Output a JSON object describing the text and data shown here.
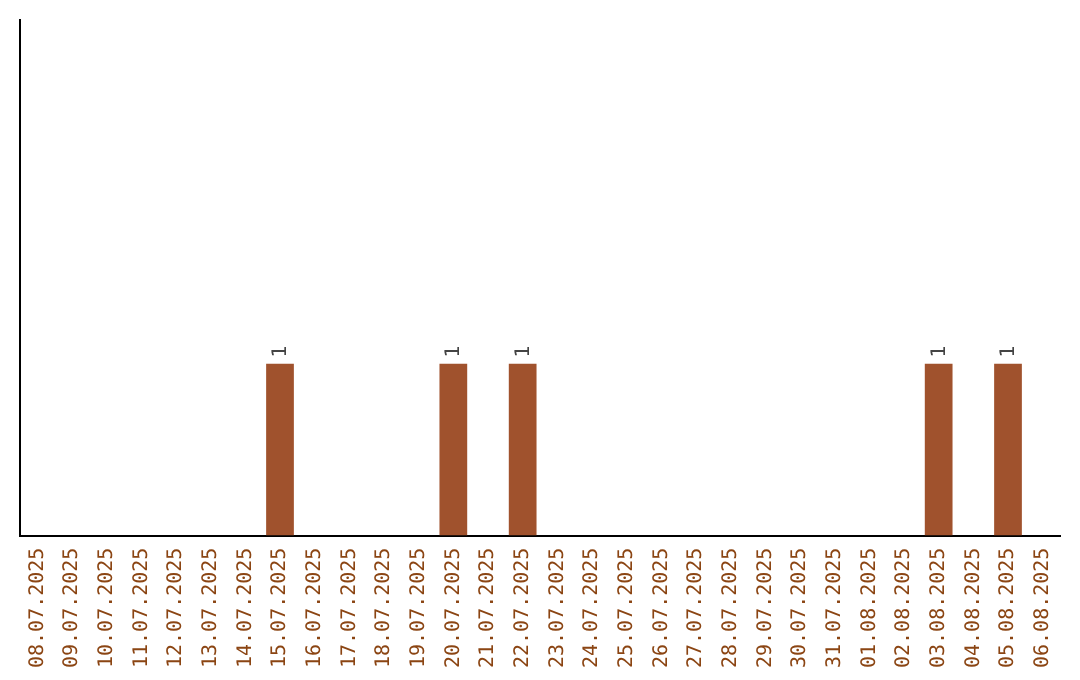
{
  "chart_data": {
    "type": "bar",
    "categories": [
      "08.07.2025",
      "09.07.2025",
      "10.07.2025",
      "11.07.2025",
      "12.07.2025",
      "13.07.2025",
      "14.07.2025",
      "15.07.2025",
      "16.07.2025",
      "17.07.2025",
      "18.07.2025",
      "19.07.2025",
      "20.07.2025",
      "21.07.2025",
      "22.07.2025",
      "23.07.2025",
      "24.07.2025",
      "25.07.2025",
      "26.07.2025",
      "27.07.2025",
      "28.07.2025",
      "29.07.2025",
      "30.07.2025",
      "31.07.2025",
      "01.08.2025",
      "02.08.2025",
      "03.08.2025",
      "04.08.2025",
      "05.08.2025",
      "06.08.2025"
    ],
    "values": [
      0,
      0,
      0,
      0,
      0,
      0,
      0,
      1,
      0,
      0,
      0,
      0,
      1,
      0,
      1,
      0,
      0,
      0,
      0,
      0,
      0,
      0,
      0,
      0,
      0,
      0,
      1,
      0,
      1,
      0
    ],
    "value_labels": [
      null,
      null,
      null,
      null,
      null,
      null,
      null,
      "1",
      null,
      null,
      null,
      null,
      "1",
      null,
      "1",
      null,
      null,
      null,
      null,
      null,
      null,
      null,
      null,
      null,
      null,
      null,
      "1",
      null,
      "1",
      null
    ],
    "color": "#a0522d",
    "ylim": [
      0,
      3
    ],
    "tick_labels": "x",
    "grid": false,
    "legend": false
  }
}
